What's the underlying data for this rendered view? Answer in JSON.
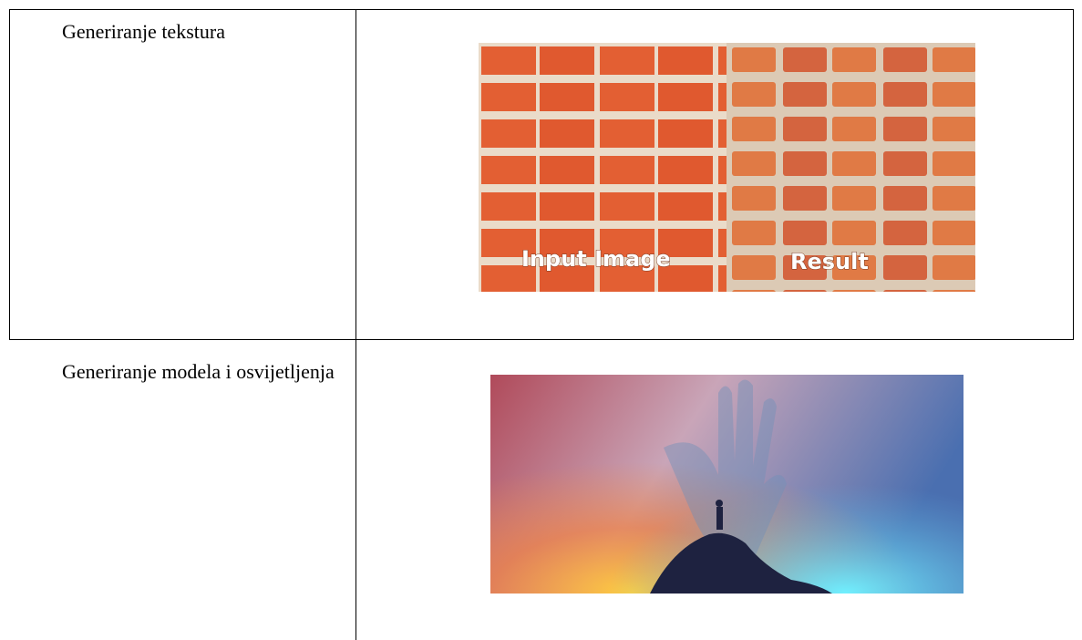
{
  "table": {
    "rows": [
      {
        "label": "Generiranje tekstura",
        "image_captions": [
          "Input Image",
          "Result"
        ]
      },
      {
        "label": "Generiranje modela i osvijetljenja"
      }
    ]
  }
}
